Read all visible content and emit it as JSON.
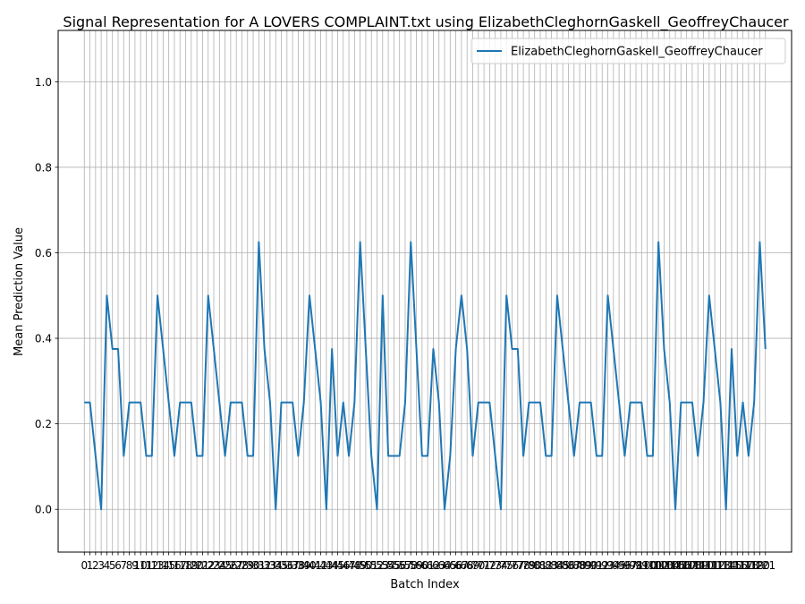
{
  "chart_data": {
    "type": "line",
    "title": "Signal Representation for A LOVERS COMPLAINT.txt using ElizabethCleghornGaskell_GeoffreyChaucer",
    "xlabel": "Batch Index",
    "ylabel": "Mean Prediction Value",
    "xlim": [
      -4.65,
      125.65
    ],
    "ylim": [
      -0.1,
      1.12
    ],
    "yticks": [
      "0.0",
      "0.2",
      "0.4",
      "0.6",
      "0.8",
      "1.0"
    ],
    "grid": true,
    "legend_position": "top-right",
    "x": [
      0,
      1,
      2,
      3,
      4,
      5,
      6,
      7,
      8,
      9,
      10,
      11,
      12,
      13,
      14,
      15,
      16,
      17,
      18,
      19,
      20,
      21,
      22,
      23,
      24,
      25,
      26,
      27,
      28,
      29,
      30,
      31,
      32,
      33,
      34,
      35,
      36,
      37,
      38,
      39,
      40,
      41,
      42,
      43,
      44,
      45,
      46,
      47,
      48,
      49,
      50,
      51,
      52,
      53,
      54,
      55,
      56,
      57,
      58,
      59,
      60,
      61,
      62,
      63,
      64,
      65,
      66,
      67,
      68,
      69,
      70,
      71,
      72,
      73,
      74,
      75,
      76,
      77,
      78,
      79,
      80,
      81,
      82,
      83,
      84,
      85,
      86,
      87,
      88,
      89,
      90,
      91,
      92,
      93,
      94,
      95,
      96,
      97,
      98,
      99,
      100,
      101,
      102,
      103,
      104,
      105,
      106,
      107,
      108,
      109,
      110,
      111,
      112,
      113,
      114,
      115,
      116,
      117,
      118,
      119,
      120,
      121
    ],
    "series": [
      {
        "name": "ElizabethCleghornGaskell_GeoffreyChaucer",
        "color": "#1f77b4",
        "values": [
          0.25,
          0.25,
          0.125,
          0.0,
          0.5,
          0.375,
          0.375,
          0.125,
          0.25,
          0.25,
          0.25,
          0.125,
          0.125,
          0.5,
          0.375,
          0.25,
          0.125,
          0.25,
          0.25,
          0.25,
          0.125,
          0.125,
          0.5,
          0.375,
          0.25,
          0.125,
          0.25,
          0.25,
          0.25,
          0.125,
          0.125,
          0.625,
          0.375,
          0.25,
          0.0,
          0.25,
          0.25,
          0.25,
          0.125,
          0.25,
          0.5,
          0.375,
          0.25,
          0.0,
          0.375,
          0.125,
          0.25,
          0.125,
          0.25,
          0.625,
          0.375,
          0.125,
          0.0,
          0.5,
          0.125,
          0.125,
          0.125,
          0.25,
          0.625,
          0.375,
          0.125,
          0.125,
          0.375,
          0.25,
          0.0,
          0.125,
          0.375,
          0.5,
          0.375,
          0.125,
          0.25,
          0.25,
          0.25,
          0.125,
          0.0,
          0.5,
          0.375,
          0.375,
          0.125,
          0.25,
          0.25,
          0.25,
          0.125,
          0.125,
          0.5,
          0.375,
          0.25,
          0.125,
          0.25,
          0.25,
          0.25,
          0.125,
          0.125,
          0.5,
          0.375,
          0.25,
          0.125,
          0.25,
          0.25,
          0.25,
          0.125,
          0.125,
          0.625,
          0.375,
          0.25,
          0.0,
          0.25,
          0.25,
          0.25,
          0.125,
          0.25,
          0.5,
          0.375,
          0.25,
          0.0,
          0.375,
          0.125,
          0.25,
          0.125,
          0.25,
          0.625,
          0.375
        ]
      }
    ]
  }
}
